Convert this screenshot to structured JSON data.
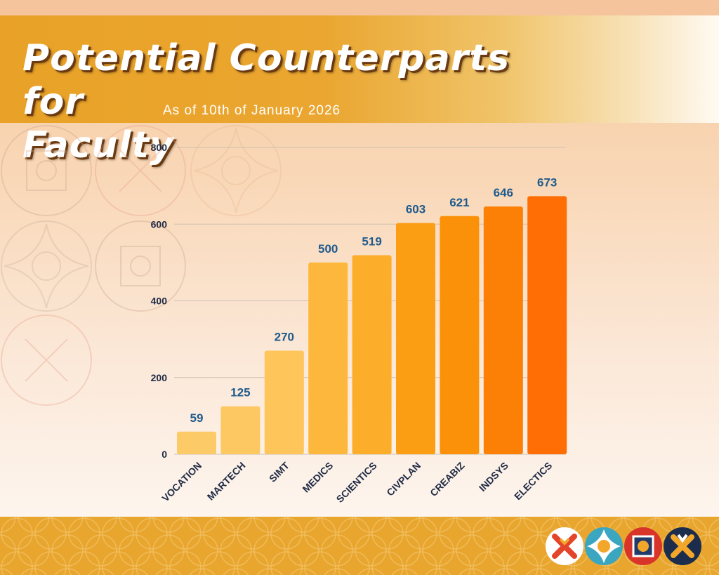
{
  "header": {
    "title_line1": "Potential Counterparts for",
    "title_line2": "Faculty",
    "subtitle": "As of 10th of January 2026"
  },
  "chart_data": {
    "type": "bar",
    "title": "Potential Counterparts for Faculty",
    "subtitle": "As of 10th of January 2026",
    "categories": [
      "VOCATION",
      "MARTECH",
      "SIMT",
      "MEDICS",
      "SCIENTICS",
      "CIVPLAN",
      "CREABIZ",
      "INDSYS",
      "ELECTICS"
    ],
    "values": [
      59,
      125,
      270,
      500,
      519,
      603,
      621,
      646,
      673
    ],
    "ylim": [
      0,
      800
    ],
    "yticks": [
      0,
      200,
      400,
      600,
      800
    ],
    "grid": true,
    "legend": "none",
    "bar_colors": [
      "#fdca68",
      "#fdc862",
      "#fdc55a",
      "#fdb73c",
      "#fcad2a",
      "#fb9e14",
      "#fb9108",
      "#fc7f06",
      "#fe6e05"
    ]
  },
  "colors": {
    "banner": "#e9a227",
    "footer": "#e9a62e",
    "axis_text": "#1f2a44",
    "value_text": "#1f5a8c"
  },
  "footer": {
    "logos": [
      "x-logo-white-red",
      "diamond-logo-teal",
      "gear-logo-red",
      "x-logo-navy"
    ]
  }
}
